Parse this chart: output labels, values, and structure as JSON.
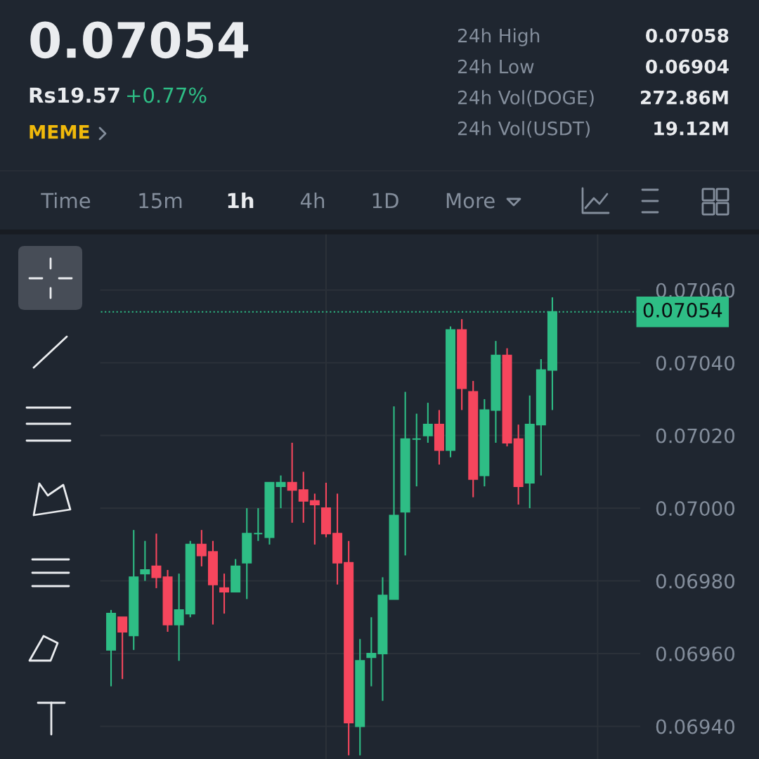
{
  "chart_data": {
    "type": "candlestick",
    "title": "0.07054",
    "annotations": [
      "Rs19.57",
      "+0.77%",
      "MEME",
      "24h High",
      "0.07058",
      "24h Low",
      "0.06904",
      "24h Vol(DOGE)",
      "272.86M",
      "24h Vol(USDT)",
      "19.12M",
      "Time",
      "15m",
      "1h",
      "4h",
      "1D",
      "More"
    ],
    "categories": [
      null,
      null,
      null,
      null,
      null,
      null,
      null,
      null,
      null,
      null,
      null,
      null,
      null,
      null,
      null,
      null,
      null,
      null,
      null,
      null,
      null,
      null,
      null,
      null,
      null,
      null,
      null,
      null,
      null,
      null,
      null,
      null,
      null,
      null,
      null,
      null,
      null,
      null,
      null,
      null
    ],
    "ohlc": [
      [
        0.06961,
        0.06972,
        0.06951,
        0.06971
      ],
      [
        0.0697,
        0.0697,
        0.06953,
        0.06966
      ],
      [
        0.06965,
        0.06994,
        0.06961,
        0.06981
      ],
      [
        0.06982,
        0.06991,
        0.0698,
        0.06983
      ],
      [
        0.06984,
        0.06993,
        0.06978,
        0.06981
      ],
      [
        0.06981,
        0.06983,
        0.06966,
        0.06968
      ],
      [
        0.06968,
        0.06982,
        0.06958,
        0.06972
      ],
      [
        0.06971,
        0.06991,
        0.0697,
        0.0699
      ],
      [
        0.0699,
        0.06994,
        0.06984,
        0.06987
      ],
      [
        0.06988,
        0.06991,
        0.06968,
        0.06979
      ],
      [
        0.06978,
        0.06982,
        0.06971,
        0.06977
      ],
      [
        0.06977,
        0.06986,
        0.06977,
        0.06984
      ],
      [
        0.06985,
        0.07,
        0.06975,
        0.06993
      ],
      [
        0.06993,
        0.07,
        0.06991,
        0.06993
      ],
      [
        0.06992,
        0.07007,
        0.0699,
        0.07007
      ],
      [
        0.07006,
        0.07009,
        0.07,
        0.07007
      ],
      [
        0.07007,
        0.07018,
        0.06996,
        0.07005
      ],
      [
        0.07005,
        0.0701,
        0.06996,
        0.07002
      ],
      [
        0.07002,
        0.07004,
        0.0699,
        0.07001
      ],
      [
        0.07,
        0.07007,
        0.06992,
        0.06993
      ],
      [
        0.06993,
        0.07004,
        0.06979,
        0.06985
      ],
      [
        0.06985,
        0.06991,
        0.06932,
        0.06941
      ],
      [
        0.0694,
        0.06964,
        0.06932,
        0.06958
      ],
      [
        0.06959,
        0.0697,
        0.06951,
        0.0696
      ],
      [
        0.0696,
        0.06981,
        0.06947,
        0.06976
      ],
      [
        0.06975,
        0.07028,
        0.06975,
        0.06998
      ],
      [
        0.06999,
        0.07032,
        0.06987,
        0.07019
      ],
      [
        0.07019,
        0.07026,
        0.07006,
        0.07019
      ],
      [
        0.0702,
        0.07029,
        0.07018,
        0.07023
      ],
      [
        0.07023,
        0.07027,
        0.07012,
        0.07016
      ],
      [
        0.07016,
        0.0705,
        0.07014,
        0.07049
      ],
      [
        0.07049,
        0.07052,
        0.07027,
        0.07033
      ],
      [
        0.07032,
        0.07035,
        0.07003,
        0.07008
      ],
      [
        0.07009,
        0.0703,
        0.07006,
        0.07027
      ],
      [
        0.07027,
        0.07046,
        0.07018,
        0.07042
      ],
      [
        0.07042,
        0.07044,
        0.07017,
        0.07018
      ],
      [
        0.07019,
        0.07023,
        0.07001,
        0.07006
      ],
      [
        0.07007,
        0.07031,
        0.07,
        0.07023
      ],
      [
        0.07023,
        0.07041,
        0.07009,
        0.07038
      ],
      [
        0.07038,
        0.07058,
        0.07027,
        0.07054
      ]
    ],
    "colors": [
      "#2ebd85",
      "#f6465d",
      "#2ebd85",
      "#2ebd85",
      "#f6465d",
      "#f6465d",
      "#2ebd85",
      "#2ebd85",
      "#f6465d",
      "#f6465d",
      "#f6465d",
      "#2ebd85",
      "#2ebd85",
      "#2ebd85",
      "#2ebd85",
      "#2ebd85",
      "#f6465d",
      "#f6465d",
      "#f6465d",
      "#f6465d",
      "#f6465d",
      "#f6465d",
      "#2ebd85",
      "#2ebd85",
      "#2ebd85",
      "#2ebd85",
      "#2ebd85",
      "#2ebd85",
      "#2ebd85",
      "#f6465d",
      "#2ebd85",
      "#f6465d",
      "#f6465d",
      "#2ebd85",
      "#2ebd85",
      "#f6465d",
      "#f6465d",
      "#2ebd85",
      "#2ebd85",
      "#2ebd85"
    ],
    "ylim": [
      0.06931,
      0.07076
    ],
    "yticks": [
      {
        "value": 0.0694,
        "label": "0.06940"
      },
      {
        "value": 0.0696,
        "label": "0.06960"
      },
      {
        "value": 0.0698,
        "label": "0.06980"
      },
      {
        "value": 0.07,
        "label": "0.07000"
      },
      {
        "value": 0.0702,
        "label": "0.07020"
      },
      {
        "value": 0.0704,
        "label": "0.07040"
      },
      {
        "value": 0.0706,
        "label": "0.07060"
      }
    ],
    "tick_labels": "y",
    "grid": "y",
    "ref_lines": [
      {
        "axis": "y",
        "value": 0.07054,
        "label": "0.07054",
        "color": "#2ebd85",
        "line_style": "dotted"
      }
    ]
  }
}
